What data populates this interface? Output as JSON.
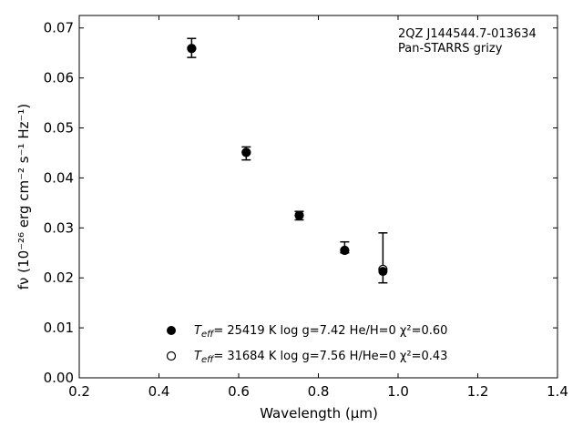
{
  "chart_data": {
    "type": "scatter",
    "title": "",
    "annotations": [
      "2QZ J144544.7-013634",
      "Pan-STARRS grizy"
    ],
    "xlabel": "Wavelength (μm)",
    "ylabel": "fν (10⁻²⁶ erg cm⁻² s⁻¹ Hz⁻¹)",
    "xlim": [
      0.2,
      1.4
    ],
    "ylim": [
      0.0,
      0.0725
    ],
    "xticks": [
      0.2,
      0.4,
      0.6,
      0.8,
      1.0,
      1.2,
      1.4
    ],
    "xtick_labels": [
      "0.2",
      "0.4",
      "0.6",
      "0.8",
      "1.0",
      "1.2",
      "1.4"
    ],
    "yticks": [
      0.0,
      0.01,
      0.02,
      0.03,
      0.04,
      0.05,
      0.06,
      0.07
    ],
    "ytick_labels": [
      "0.00",
      "0.01",
      "0.02",
      "0.03",
      "0.04",
      "0.05",
      "0.06",
      "0.07"
    ],
    "grid": false,
    "legend_position": "bottom-center",
    "observed": {
      "x": [
        0.482,
        0.619,
        0.752,
        0.866,
        0.962
      ],
      "y": [
        0.0659,
        0.0452,
        0.0325,
        0.026,
        0.024
      ],
      "err_lo": [
        0.0018,
        0.0016,
        0.0009,
        0.001,
        0.005
      ],
      "err_hi": [
        0.002,
        0.001,
        0.0008,
        0.0012,
        0.005
      ]
    },
    "series": [
      {
        "legend": {
          "t_label": "T",
          "t_sub": "eff",
          "text": "= 25419 K  log g=7.42  He/H=0  χ²=0.60"
        },
        "marker": "filled-circle",
        "x": [
          0.482,
          0.619,
          0.752,
          0.866,
          0.962
        ],
        "y": [
          0.0659,
          0.0451,
          0.0325,
          0.0255,
          0.0213
        ]
      },
      {
        "legend": {
          "t_label": "T",
          "t_sub": "eff",
          "text": "= 31684 K  log g=7.56  H/He=0  χ²=0.43"
        },
        "marker": "open-circle",
        "x": [
          0.482,
          0.619,
          0.752,
          0.866,
          0.962
        ],
        "y": [
          0.0659,
          0.0451,
          0.0325,
          0.0255,
          0.0217
        ]
      }
    ],
    "colors": {
      "marker": "#000000",
      "axis": "#000000",
      "background": "#ffffff"
    }
  }
}
